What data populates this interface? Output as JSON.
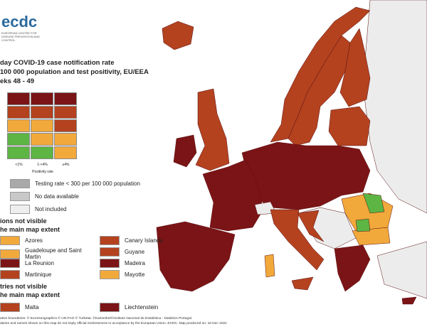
{
  "logo": {
    "text": "ecdc",
    "subtext": "EUROPEAN CENTRE FOR DISEASE PREVENTION AND CONTROL"
  },
  "title": [
    "day COVID-19 case notification rate",
    "100 000 population and test positivity, EU/EEA",
    "eks 48 - 49"
  ],
  "matrix": {
    "rows": [
      [
        "#7b1416",
        "#7b1416",
        "#7b1416"
      ],
      [
        "#b4421f",
        "#b4421f",
        "#b4421f"
      ],
      [
        "#f2a93b",
        "#f2a93b",
        "#b4421f"
      ],
      [
        "#5db543",
        "#f2a93b",
        "#f2a93b"
      ],
      [
        "#5db543",
        "#5db543",
        "#f2a93b"
      ]
    ],
    "x_labels": [
      "<1%",
      "1-<4%",
      "≥4%"
    ],
    "x_title": "Positivity rate"
  },
  "legend": [
    {
      "label": "Testing rate < 300 per 100 000 population",
      "color": "#a9a9a9"
    },
    {
      "label": "No data available",
      "color": "#c8c8c8"
    },
    {
      "label": "Not included",
      "color": "#eeeeee"
    }
  ],
  "regions": {
    "heading": [
      "ions not visible",
      "he main map extent"
    ],
    "items": [
      {
        "label": "Azores",
        "color": "#f2a93b"
      },
      {
        "label": "Canary Islands",
        "color": "#b4421f"
      },
      {
        "label": "Guadeloupe and Saint Martin",
        "color": "#f2a93b"
      },
      {
        "label": "Guyane",
        "color": "#b4421f"
      },
      {
        "label": "La Reunion",
        "color": "#7b1416"
      },
      {
        "label": "Madeira",
        "color": "#7b1416"
      },
      {
        "label": "Martinique",
        "color": "#b4421f"
      },
      {
        "label": "Mayotte",
        "color": "#f2a93b"
      }
    ]
  },
  "countries": {
    "heading": [
      "tries not visible",
      "he main map extent"
    ],
    "items": [
      {
        "label": "Malta",
        "color": "#b4421f"
      },
      {
        "label": "Liechtenstein",
        "color": "#7b1416"
      }
    ]
  },
  "footer": [
    "ative boundaries: © EuroGeographics © UN-FAO © Turkstat. ©Kartverket©Instituto Nacional de Estatística - Statistics Portugal.",
    "daries and names shown on this map do not imply official endorsement or acceptance by the European Union. ECDC. Map produced on: 16 Dec 2021"
  ]
}
